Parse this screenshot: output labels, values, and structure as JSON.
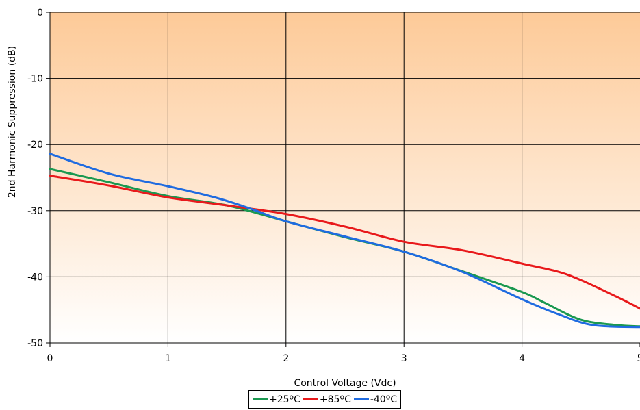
{
  "chart_data": {
    "type": "line",
    "title": "",
    "xlabel": "Control Voltage (Vdc)",
    "ylabel": "2nd Harmonic Suppression (dB)",
    "xlim": [
      0,
      5
    ],
    "ylim": [
      -50,
      0
    ],
    "x_ticks": [
      "0",
      "1",
      "2",
      "3",
      "4",
      "5"
    ],
    "y_ticks": [
      "0",
      "-10",
      "-20",
      "-30",
      "-40",
      "-50"
    ],
    "grid": true,
    "legend_position": "bottom",
    "background": "orange-to-white vertical gradient",
    "series": [
      {
        "name": "+25ºC",
        "color": "#1a9850",
        "x": [
          0,
          0.5,
          1,
          1.5,
          2,
          2.5,
          3,
          3.5,
          4,
          4.2,
          4.5,
          4.8,
          5
        ],
        "y": [
          -23.7,
          -25.7,
          -27.8,
          -29.2,
          -31.6,
          -34.0,
          -36.2,
          -39.2,
          -42.3,
          -44.0,
          -46.5,
          -47.3,
          -47.5
        ]
      },
      {
        "name": "+85ºC",
        "color": "#e8191b",
        "x": [
          0,
          0.5,
          1,
          1.5,
          2,
          2.5,
          3,
          3.5,
          4,
          4.3,
          4.5,
          4.8,
          5
        ],
        "y": [
          -24.7,
          -26.2,
          -28.0,
          -29.2,
          -30.5,
          -32.4,
          -34.7,
          -36.0,
          -38.0,
          -39.2,
          -40.5,
          -43.0,
          -44.8
        ]
      },
      {
        "name": "-40ºC",
        "color": "#1f6be0",
        "x": [
          0,
          0.5,
          1,
          1.4,
          1.7,
          2,
          2.5,
          3,
          3.5,
          4,
          4.3,
          4.6,
          5
        ],
        "y": [
          -21.4,
          -24.4,
          -26.3,
          -28.0,
          -29.7,
          -31.6,
          -33.9,
          -36.2,
          -39.3,
          -43.4,
          -45.6,
          -47.3,
          -47.6
        ]
      }
    ]
  }
}
